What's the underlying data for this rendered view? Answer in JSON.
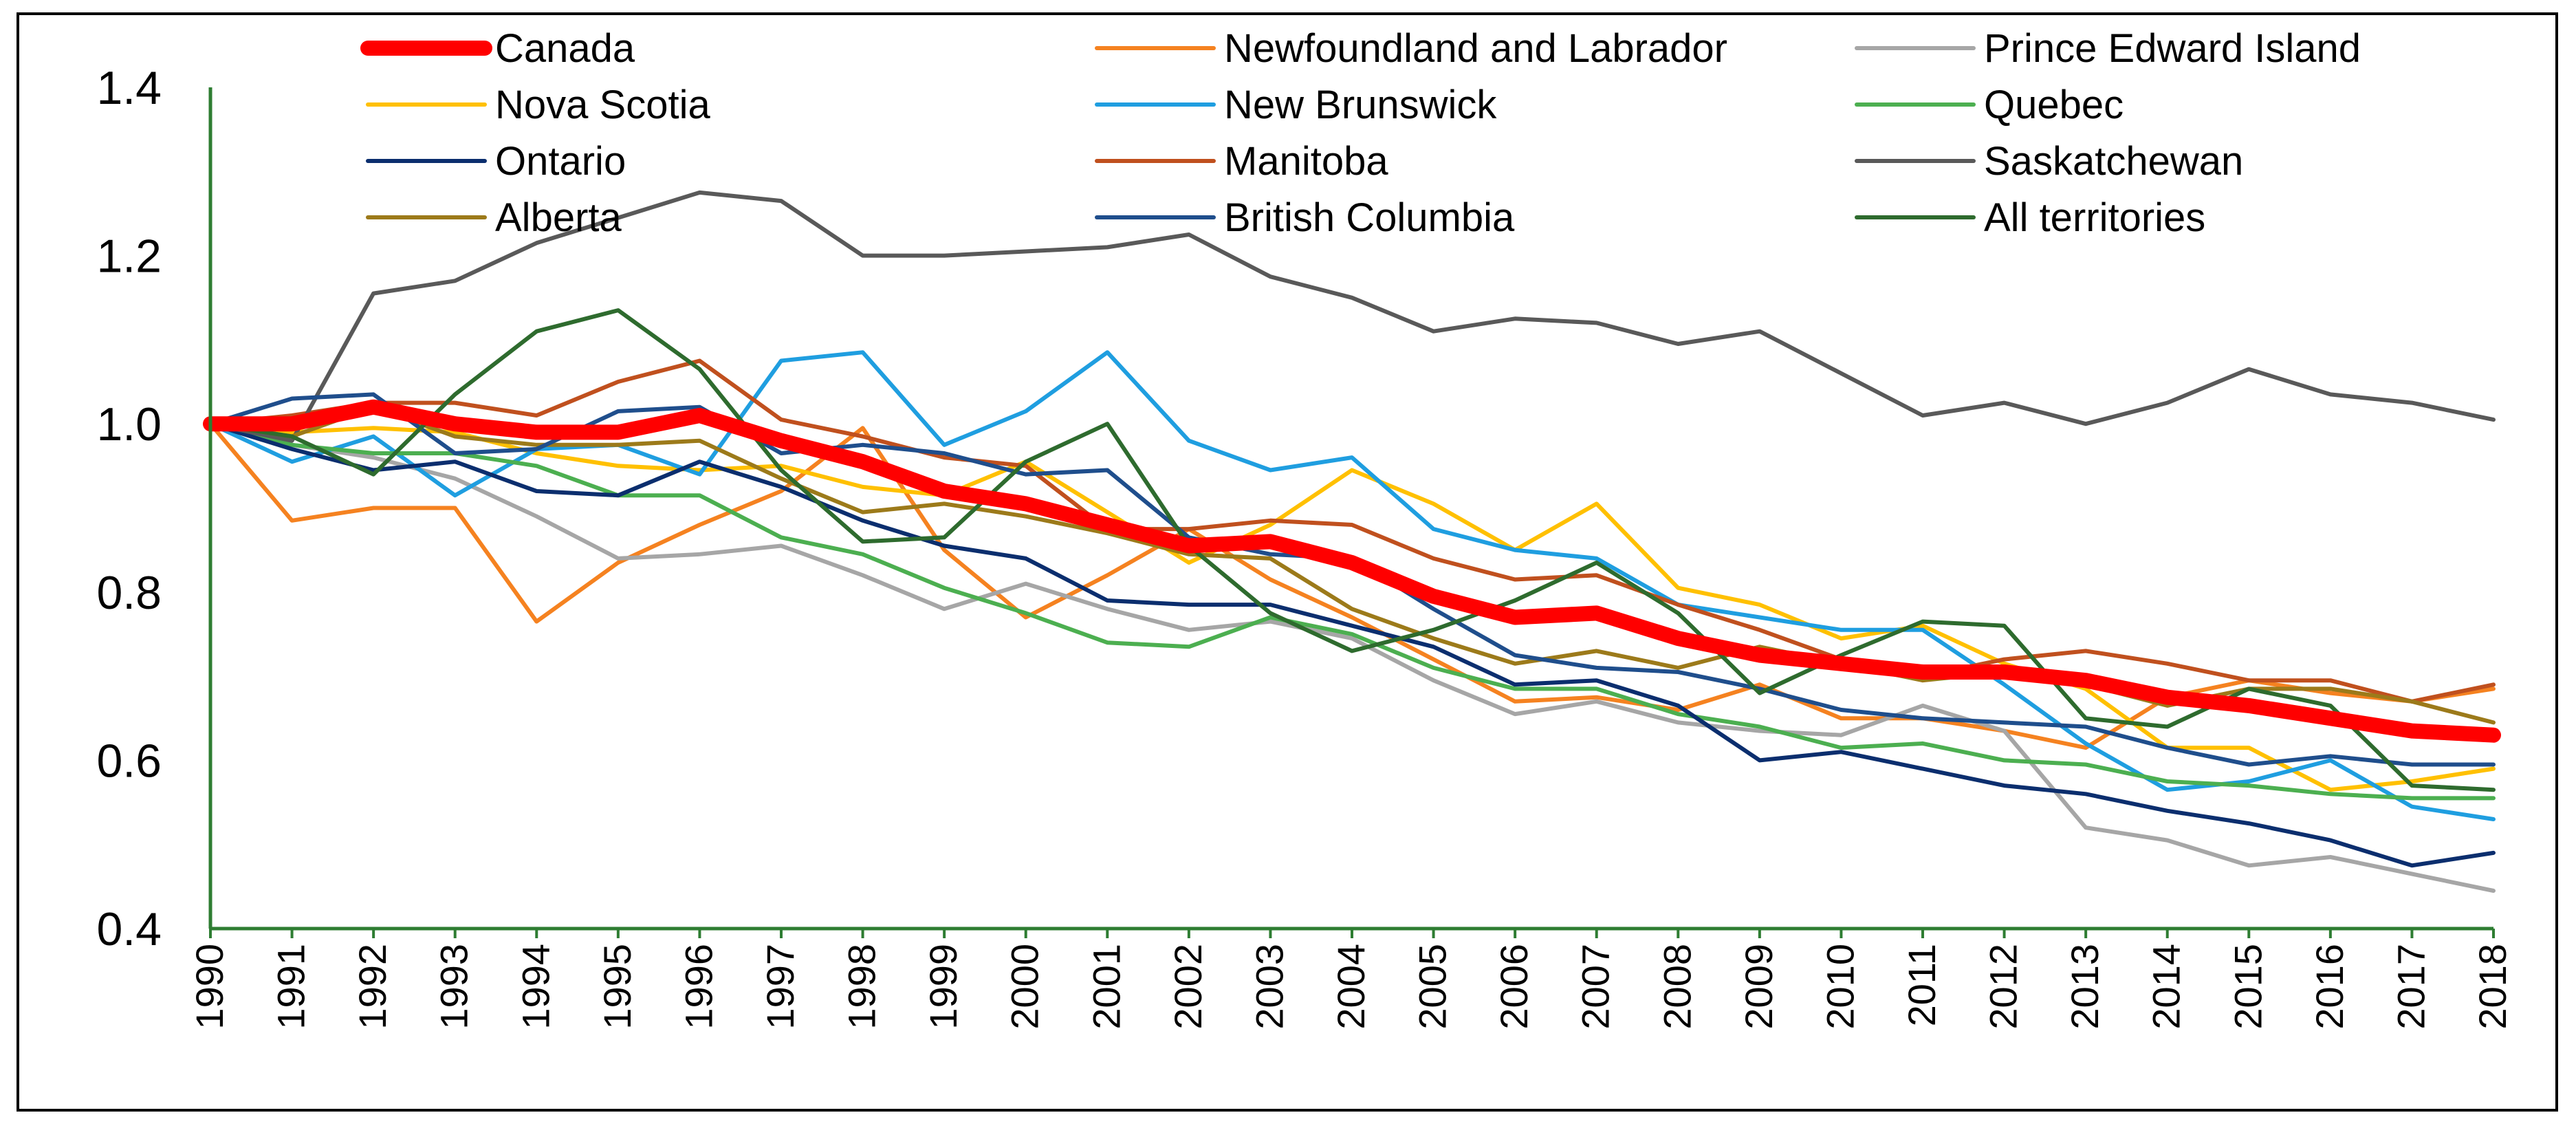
{
  "chart_data": {
    "type": "line",
    "title": "",
    "xlabel": "",
    "ylabel": "",
    "ylim": [
      0.4,
      1.4
    ],
    "yticks": [
      0.4,
      0.6,
      0.8,
      1.0,
      1.2,
      1.4
    ],
    "ytick_labels": [
      "0.4",
      "0.6",
      "0.8",
      "1.0",
      "1.2",
      "1.4"
    ],
    "grid": false,
    "legend": "top",
    "x": [
      "1990",
      "1991",
      "1992",
      "1993",
      "1994",
      "1995",
      "1996",
      "1997",
      "1998",
      "1999",
      "2000",
      "2001",
      "2002",
      "2003",
      "2004",
      "2005",
      "2006",
      "2007",
      "2008",
      "2009",
      "2010",
      "2011",
      "2012",
      "2013",
      "2014",
      "2015",
      "2016",
      "2017",
      "2018"
    ],
    "axis_color": "#2e7d32",
    "series": [
      {
        "name": "Canada",
        "color": "#ff0000",
        "width": 22,
        "values": [
          1.0,
          1.0,
          1.02,
          1.0,
          0.99,
          0.99,
          1.01,
          0.98,
          0.955,
          0.92,
          0.905,
          0.88,
          0.855,
          0.86,
          0.835,
          0.795,
          0.77,
          0.775,
          0.745,
          0.725,
          0.715,
          0.705,
          0.705,
          0.695,
          0.675,
          0.665,
          0.65,
          0.635,
          0.63
        ]
      },
      {
        "name": "Newfoundland and Labrador",
        "color": "#f58220",
        "width": 6,
        "values": [
          1.0,
          0.885,
          0.9,
          0.9,
          0.765,
          0.835,
          0.88,
          0.92,
          0.995,
          0.85,
          0.77,
          0.82,
          0.875,
          0.815,
          0.77,
          0.72,
          0.67,
          0.675,
          0.66,
          0.69,
          0.65,
          0.65,
          0.635,
          0.615,
          0.675,
          0.695,
          0.68,
          0.67,
          0.685
        ]
      },
      {
        "name": "Prince Edward Island",
        "color": "#a6a6a6",
        "width": 6,
        "values": [
          1.0,
          0.975,
          0.96,
          0.935,
          0.89,
          0.84,
          0.845,
          0.855,
          0.82,
          0.78,
          0.81,
          0.78,
          0.755,
          0.765,
          0.745,
          0.695,
          0.655,
          0.67,
          0.645,
          0.635,
          0.63,
          0.665,
          0.635,
          0.52,
          0.505,
          0.475,
          0.485,
          0.465,
          0.445
        ]
      },
      {
        "name": "Nova Scotia",
        "color": "#ffc000",
        "width": 6,
        "values": [
          1.0,
          0.99,
          0.995,
          0.99,
          0.965,
          0.95,
          0.945,
          0.95,
          0.925,
          0.915,
          0.955,
          0.895,
          0.835,
          0.88,
          0.945,
          0.905,
          0.85,
          0.905,
          0.805,
          0.785,
          0.745,
          0.76,
          0.715,
          0.685,
          0.615,
          0.615,
          0.565,
          0.575,
          0.59
        ]
      },
      {
        "name": "New Brunswick",
        "color": "#1f9ee0",
        "width": 6,
        "values": [
          1.0,
          0.955,
          0.985,
          0.915,
          0.97,
          0.975,
          0.94,
          1.075,
          1.085,
          0.975,
          1.015,
          1.085,
          0.98,
          0.945,
          0.96,
          0.875,
          0.85,
          0.84,
          0.785,
          0.77,
          0.755,
          0.755,
          0.69,
          0.62,
          0.565,
          0.575,
          0.6,
          0.545,
          0.53
        ]
      },
      {
        "name": "Quebec",
        "color": "#4caf50",
        "width": 6,
        "values": [
          1.0,
          0.975,
          0.965,
          0.965,
          0.95,
          0.915,
          0.915,
          0.865,
          0.845,
          0.805,
          0.775,
          0.74,
          0.735,
          0.77,
          0.75,
          0.71,
          0.685,
          0.685,
          0.655,
          0.64,
          0.615,
          0.62,
          0.6,
          0.595,
          0.575,
          0.57,
          0.56,
          0.555,
          0.555
        ]
      },
      {
        "name": "Ontario",
        "color": "#0b2e6e",
        "width": 6,
        "values": [
          1.0,
          0.97,
          0.945,
          0.955,
          0.92,
          0.915,
          0.955,
          0.925,
          0.885,
          0.855,
          0.84,
          0.79,
          0.785,
          0.785,
          0.76,
          0.735,
          0.69,
          0.695,
          0.665,
          0.6,
          0.61,
          0.59,
          0.57,
          0.56,
          0.54,
          0.525,
          0.505,
          0.475,
          0.49
        ]
      },
      {
        "name": "Manitoba",
        "color": "#c0501e",
        "width": 6,
        "values": [
          1.0,
          1.01,
          1.025,
          1.025,
          1.01,
          1.05,
          1.075,
          1.005,
          0.985,
          0.96,
          0.95,
          0.875,
          0.875,
          0.885,
          0.88,
          0.84,
          0.815,
          0.82,
          0.785,
          0.755,
          0.72,
          0.7,
          0.72,
          0.73,
          0.715,
          0.695,
          0.695,
          0.67,
          0.69
        ]
      },
      {
        "name": "Saskatchewan",
        "color": "#595959",
        "width": 6,
        "values": [
          1.0,
          0.98,
          1.155,
          1.17,
          1.215,
          1.245,
          1.275,
          1.265,
          1.2,
          1.2,
          1.205,
          1.21,
          1.225,
          1.175,
          1.15,
          1.11,
          1.125,
          1.12,
          1.095,
          1.11,
          1.06,
          1.01,
          1.025,
          1.0,
          1.025,
          1.065,
          1.035,
          1.025,
          1.005
        ]
      },
      {
        "name": "Alberta",
        "color": "#9c7a1a",
        "width": 6,
        "values": [
          1.0,
          0.985,
          1.02,
          0.985,
          0.975,
          0.975,
          0.98,
          0.935,
          0.895,
          0.905,
          0.89,
          0.87,
          0.845,
          0.84,
          0.78,
          0.745,
          0.715,
          0.73,
          0.71,
          0.735,
          0.715,
          0.695,
          0.705,
          0.69,
          0.665,
          0.685,
          0.685,
          0.67,
          0.645
        ]
      },
      {
        "name": "British Columbia",
        "color": "#1f4e8c",
        "width": 6,
        "values": [
          1.0,
          1.03,
          1.035,
          0.965,
          0.97,
          1.015,
          1.02,
          0.965,
          0.975,
          0.965,
          0.94,
          0.945,
          0.865,
          0.845,
          0.84,
          0.78,
          0.725,
          0.71,
          0.705,
          0.685,
          0.66,
          0.65,
          0.645,
          0.64,
          0.615,
          0.595,
          0.605,
          0.595,
          0.595
        ]
      },
      {
        "name": "All territories",
        "color": "#2e6b2e",
        "width": 6,
        "values": [
          1.0,
          0.985,
          0.94,
          1.035,
          1.11,
          1.135,
          1.065,
          0.945,
          0.86,
          0.865,
          0.955,
          1.0,
          0.855,
          0.775,
          0.73,
          0.755,
          0.79,
          0.835,
          0.775,
          0.68,
          0.725,
          0.765,
          0.76,
          0.65,
          0.64,
          0.685,
          0.665,
          0.57,
          0.565
        ]
      }
    ]
  }
}
